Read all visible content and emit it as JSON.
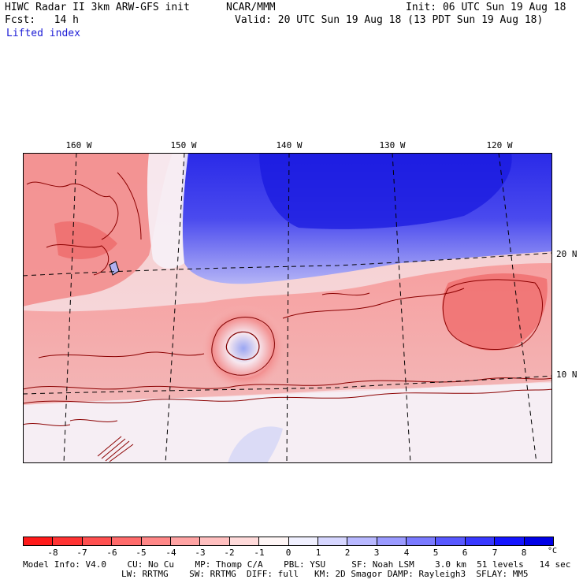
{
  "header": {
    "left_line1": "HIWC Radar II 3km ARW-GFS init",
    "center_line1": "NCAR/MMM",
    "right_line1": "Init: 06 UTC Sun 19 Aug 18",
    "left_line2": "Fcst:   14 h",
    "right_line2": "Valid: 20 UTC Sun 19 Aug 18 (13 PDT Sun 19 Aug 18)",
    "field_name": "Lifted index"
  },
  "map": {
    "longitude_labels": [
      "160 W",
      "150 W",
      "140 W",
      "130 W",
      "120 W"
    ],
    "latitude_labels": [
      "20 N",
      "10 N"
    ]
  },
  "colorbar": {
    "tick_labels": [
      "-8",
      "-7",
      "-6",
      "-5",
      "-4",
      "-3",
      "-2",
      "-1",
      "0",
      "1",
      "2",
      "3",
      "4",
      "5",
      "6",
      "7",
      "8"
    ],
    "unit": "°C",
    "colors": [
      "#ff1a1a",
      "#ff3333",
      "#ff5050",
      "#ff6b6b",
      "#ff8787",
      "#ffa3a3",
      "#ffbfbf",
      "#ffdada",
      "#fff6f6",
      "#f0f0ff",
      "#d6d6ff",
      "#b8b8ff",
      "#9a9aff",
      "#7a7aff",
      "#5858ff",
      "#3838ff",
      "#1414ff",
      "#0000e6"
    ]
  },
  "footer": {
    "line1": "Model Info: V4.0    CU: No Cu    MP: Thomp C/A    PBL: YSU     SF: Noah LSM    3.0 km  51 levels   14 sec",
    "line2": "LW: RRTMG    SW: RRTMG  DIFF: full   KM: 2D Smagor DAMP: Rayleigh3  SFLAY: MM5"
  }
}
